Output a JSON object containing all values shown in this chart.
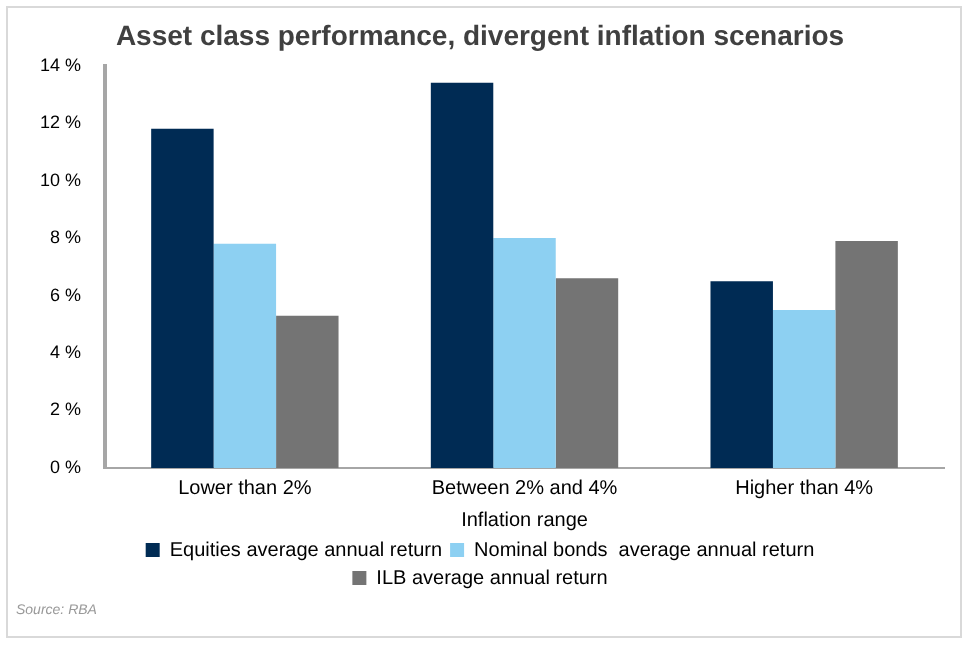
{
  "chart_data": {
    "type": "bar",
    "title": "Asset class performance, divergent inflation scenarios",
    "xlabel": "Inflation range",
    "categories": [
      "Lower than 2%",
      "Between 2% and 4%",
      "Higher than 4%"
    ],
    "series": [
      {
        "name": "Equities average annual return",
        "color": "#002b54",
        "values": [
          11.8,
          13.4,
          6.5
        ]
      },
      {
        "name": "Nominal bonds  average annual return",
        "color": "#8dd0f2",
        "values": [
          7.8,
          8.0,
          5.5
        ]
      },
      {
        "name": "ILB average annual return",
        "color": "#747474",
        "values": [
          5.3,
          6.6,
          7.9
        ]
      }
    ],
    "ylim": [
      0,
      14
    ],
    "yticks": [
      {
        "value": 0,
        "label": "0 %"
      },
      {
        "value": 2,
        "label": "2 %"
      },
      {
        "value": 4,
        "label": "4 %"
      },
      {
        "value": 6,
        "label": "6 %"
      },
      {
        "value": 8,
        "label": "8 %"
      },
      {
        "value": 10,
        "label": "10 %"
      },
      {
        "value": 12,
        "label": "12 %"
      },
      {
        "value": 14,
        "label": "14 %"
      }
    ],
    "grid": false,
    "legend": "bottom",
    "annotations": [
      "Source: RBA"
    ]
  }
}
